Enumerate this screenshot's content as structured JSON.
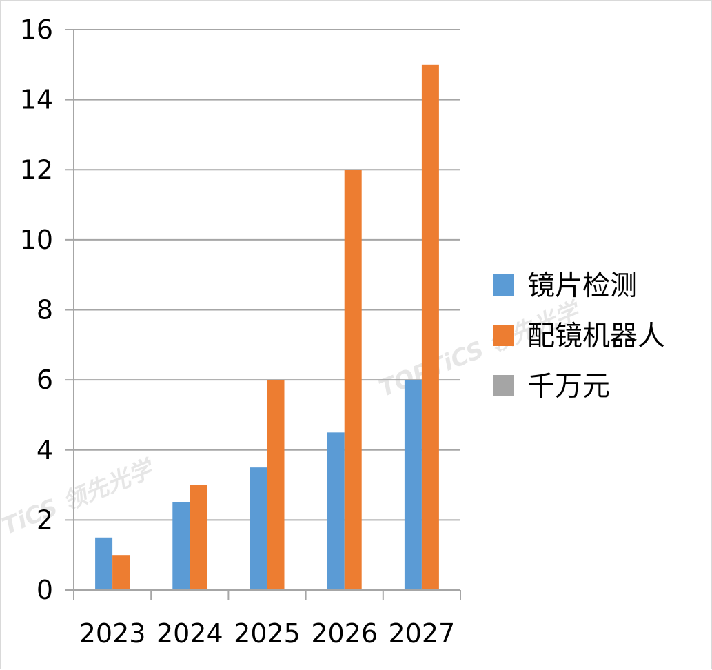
{
  "chart_data": {
    "type": "bar",
    "title": "",
    "xlabel": "",
    "ylabel": "",
    "categories": [
      "2023",
      "2024",
      "2025",
      "2026",
      "2027"
    ],
    "series": [
      {
        "name": "镜片检测",
        "values": [
          1.5,
          2.5,
          3.5,
          4.5,
          6
        ],
        "color": "#5B9BD5"
      },
      {
        "name": "配镜机器人",
        "values": [
          1,
          3,
          6,
          12,
          15
        ],
        "color": "#ED7D31"
      },
      {
        "name": "千万元",
        "values": [
          null,
          null,
          null,
          null,
          null
        ],
        "color": "#A5A5A5"
      }
    ],
    "ylim": [
      0,
      16
    ],
    "yticks": [
      0,
      2,
      4,
      6,
      8,
      10,
      12,
      14,
      16
    ],
    "grid": true,
    "legend_position": "right"
  },
  "watermarks": [
    "TOPTiCS 领先光学",
    "TiCS 领先光学"
  ]
}
